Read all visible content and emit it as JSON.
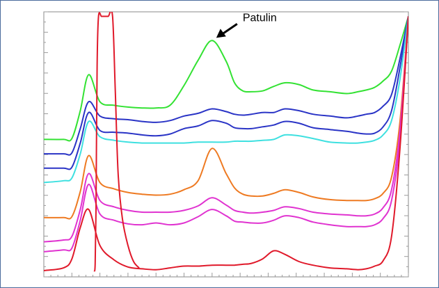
{
  "chart_data": {
    "type": "line",
    "title": "",
    "xlabel": "",
    "ylabel": "",
    "grid": false,
    "legend": "none",
    "x": [
      0,
      7,
      10,
      13,
      16,
      20,
      25,
      30,
      35,
      40,
      45,
      50,
      55,
      60,
      65,
      68,
      71,
      74,
      78,
      82,
      86,
      91,
      96,
      102,
      108,
      112,
      115,
      118,
      121,
      124,
      127,
      130
    ],
    "series": [
      {
        "color": "#33e233",
        "values": [
          98,
          98,
          99,
          130,
          170,
          140,
          136,
          134,
          133,
          133,
          136,
          158,
          186,
          208,
          185,
          161,
          152,
          151,
          152,
          157,
          161,
          159,
          153,
          151,
          149,
          151,
          153,
          156,
          163,
          174,
          203,
          235
        ]
      },
      {
        "color": "#2a34c6",
        "values": [
          82,
          82,
          83,
          110,
          140,
          124,
          121,
          120,
          118,
          117,
          119,
          124,
          127,
          132,
          129,
          126,
          125,
          126,
          128,
          128,
          132,
          130,
          126,
          124,
          122,
          124,
          126,
          128,
          135,
          148,
          188,
          235
        ]
      },
      {
        "color": "#2a34c6",
        "values": [
          66,
          66,
          67,
          94,
          128,
          108,
          106,
          105,
          103,
          102,
          104,
          110,
          113,
          119,
          116,
          111,
          110,
          110,
          112,
          114,
          118,
          116,
          111,
          109,
          107,
          105,
          104,
          105,
          112,
          130,
          178,
          235
        ]
      },
      {
        "color": "#3ee0e0",
        "values": [
          50,
          52,
          55,
          82,
          118,
          101,
          97,
          95,
          94,
          94,
          94,
          94,
          95,
          95,
          95,
          96,
          96,
          96,
          97,
          98,
          103,
          102,
          99,
          95,
          94,
          94,
          95,
          97,
          103,
          119,
          165,
          235
        ]
      },
      {
        "color": "#ee7a22",
        "values": [
          11,
          11,
          12,
          40,
          80,
          50,
          43,
          39,
          37,
          36,
          37,
          42,
          52,
          88,
          60,
          44,
          37,
          35,
          35,
          38,
          42,
          39,
          34,
          31,
          30,
          30,
          30,
          32,
          38,
          56,
          118,
          235
        ]
      },
      {
        "color": "#e033d0",
        "values": [
          -16,
          -14,
          -10,
          20,
          60,
          30,
          23,
          19,
          17,
          17,
          17,
          19,
          24,
          33,
          25,
          19,
          17,
          16,
          17,
          19,
          23,
          21,
          17,
          15,
          14,
          13,
          13,
          15,
          22,
          42,
          108,
          235
        ]
      },
      {
        "color": "#e033d0",
        "values": [
          -27,
          -25,
          -23,
          8,
          48,
          15,
          8,
          4,
          3,
          5,
          3,
          5,
          12,
          20,
          13,
          7,
          6,
          5,
          5,
          8,
          13,
          11,
          6,
          3,
          1,
          1,
          1,
          3,
          10,
          30,
          98,
          235
        ]
      },
      {
        "color": "#e0192a",
        "values": [
          -48,
          -45,
          -35,
          0,
          20,
          -20,
          -36,
          -44,
          -46,
          -47,
          -45,
          -43,
          -43,
          -42,
          -42,
          -42,
          -41,
          -40,
          -35,
          -26,
          -30,
          -38,
          -42,
          -45,
          -46,
          -47,
          -46,
          -43,
          -37,
          -10,
          88,
          235
        ]
      }
    ],
    "spike": {
      "color": "#e0192a",
      "x": [
        18.0,
        18.3,
        18.6,
        19.0,
        19.5,
        20.5,
        21.0,
        21.5,
        22.0,
        22.5,
        23.0,
        24.5,
        25.5,
        26.5,
        28.0,
        30.0,
        32.0,
        34.0
      ],
      "values": [
        -49,
        -40,
        20,
        180,
        235,
        235,
        235,
        235,
        235,
        235,
        235,
        235,
        150,
        60,
        10,
        -20,
        -38,
        -45
      ]
    },
    "ylim": [
      -55,
      240
    ],
    "xlim": [
      0,
      130
    ],
    "annotations": [
      {
        "text": "Patulin",
        "x": 60,
        "y": 208
      }
    ]
  }
}
